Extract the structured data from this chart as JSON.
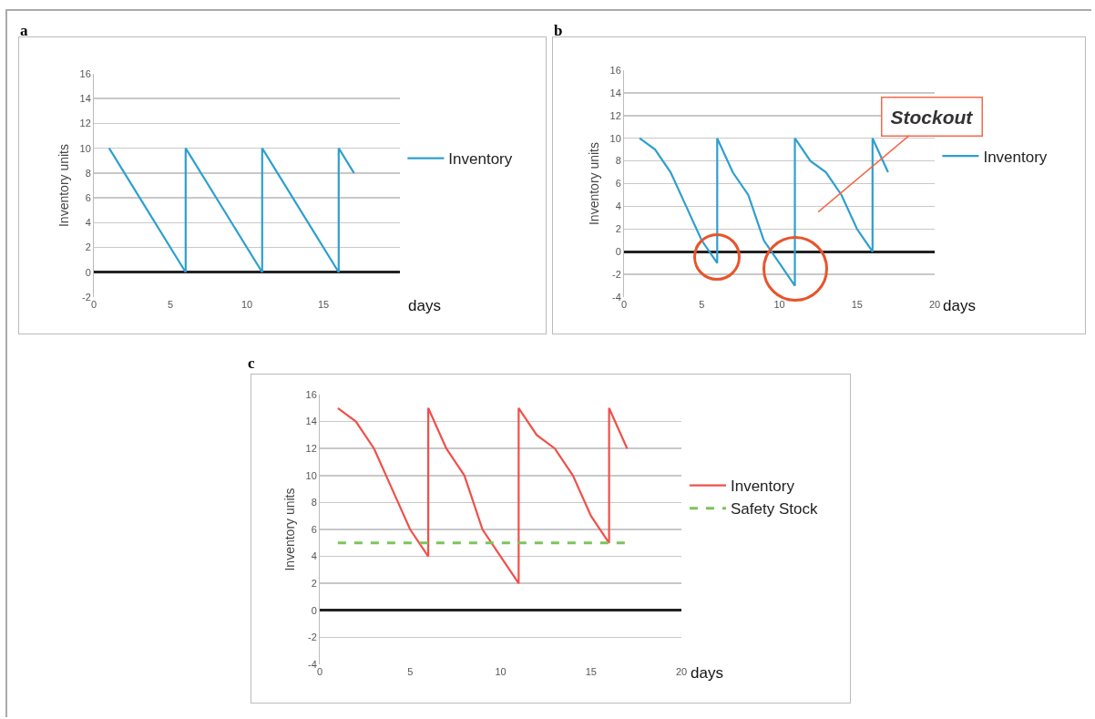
{
  "chart_data": [
    {
      "type": "line",
      "title": "a",
      "xlabel": "days",
      "ylabel": "Inventory units",
      "xlim": [
        0,
        20
      ],
      "xticks": [
        0,
        5,
        10,
        15
      ],
      "ylim": [
        -2,
        16
      ],
      "yticks": [
        -2,
        0,
        2,
        4,
        6,
        8,
        10,
        12,
        14,
        16
      ],
      "grid": "y",
      "legend": "right",
      "marker": "none",
      "series": [
        {
          "name": "Inventory",
          "color": "#2e9fd0",
          "x": [
            1,
            6,
            6,
            11,
            11,
            16,
            16,
            17
          ],
          "values": [
            10,
            0,
            10,
            0,
            10,
            0,
            10,
            8
          ]
        }
      ]
    },
    {
      "type": "line",
      "title": "b",
      "xlabel": "days",
      "ylabel": "Inventory units",
      "xlim": [
        0,
        20
      ],
      "xticks": [
        0,
        5,
        10,
        15,
        20
      ],
      "ylim": [
        -4,
        16
      ],
      "yticks": [
        -4,
        -2,
        0,
        2,
        4,
        6,
        8,
        10,
        12,
        14,
        16
      ],
      "grid": "y",
      "legend": "right",
      "marker": "none",
      "annotations": [
        "Stockout"
      ],
      "series": [
        {
          "name": "Inventory",
          "color": "#2e9fd0",
          "x": [
            1,
            2,
            3,
            4,
            5,
            6,
            6,
            7,
            8,
            9,
            10,
            11,
            11,
            12,
            13,
            14,
            15,
            16,
            16,
            17
          ],
          "values": [
            10,
            9,
            7,
            4,
            1,
            -1,
            10,
            7,
            5,
            1,
            -1,
            -3,
            10,
            8,
            7,
            5,
            2,
            0,
            10,
            7
          ]
        }
      ]
    },
    {
      "type": "line",
      "title": "c",
      "xlabel": "days",
      "ylabel": "Inventory units",
      "xlim": [
        0,
        20
      ],
      "xticks": [
        0,
        5,
        10,
        15,
        20
      ],
      "ylim": [
        -4,
        16
      ],
      "yticks": [
        -4,
        -2,
        0,
        2,
        4,
        6,
        8,
        10,
        12,
        14,
        16
      ],
      "grid": "y",
      "legend": "right",
      "marker": "none",
      "series": [
        {
          "name": "Inventory",
          "color": "#f0504a",
          "x": [
            1,
            2,
            3,
            4,
            5,
            6,
            6,
            7,
            8,
            9,
            10,
            11,
            11,
            12,
            13,
            14,
            15,
            16,
            16,
            17
          ],
          "values": [
            15,
            14,
            12,
            9,
            6,
            4,
            15,
            12,
            10,
            6,
            4,
            2,
            15,
            13,
            12,
            10,
            7,
            5,
            15,
            12
          ]
        },
        {
          "name": "Safety Stock",
          "color": "#7cc45a",
          "line_style": "dashed",
          "x": [
            1,
            17
          ],
          "values": [
            5,
            5
          ]
        }
      ]
    }
  ]
}
